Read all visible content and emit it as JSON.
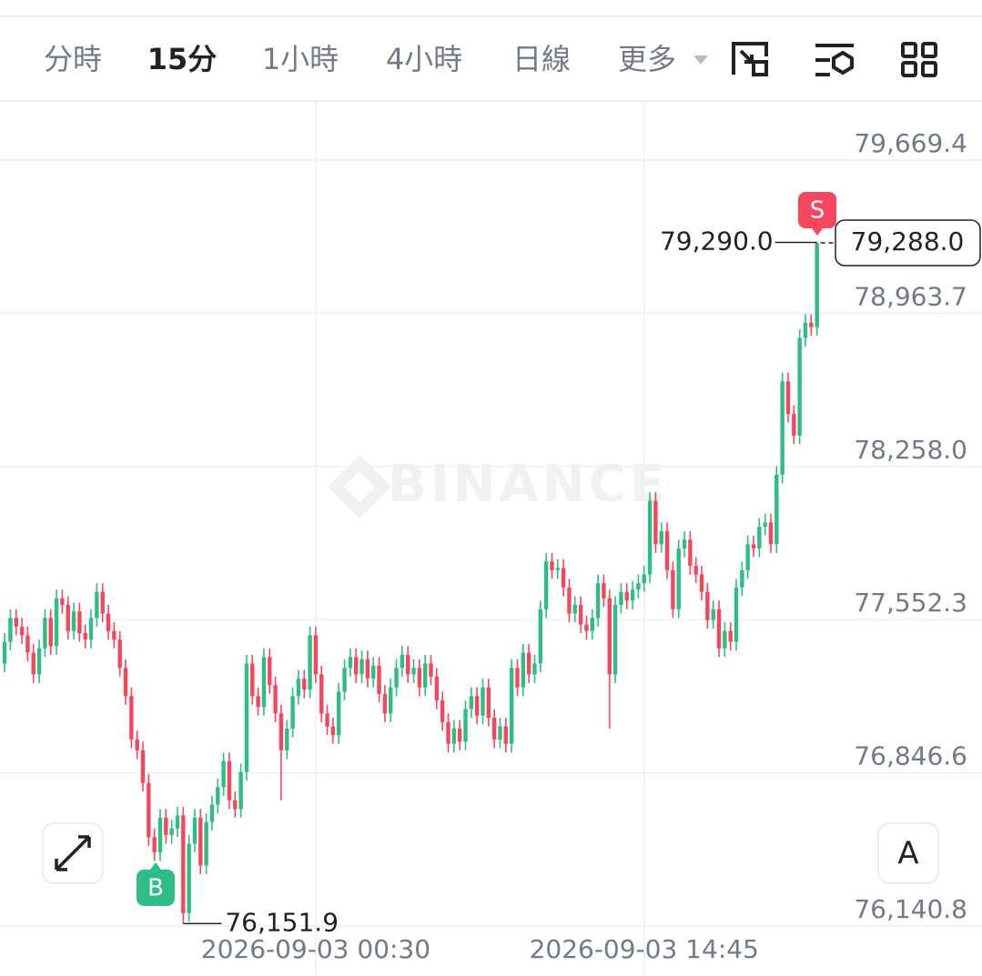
{
  "toolbar": {
    "tabs": [
      "分時",
      "15分",
      "1小時",
      "4小時",
      "日線",
      "更多"
    ]
  },
  "chart_data": {
    "type": "candlestick",
    "watermark": "BINANCE",
    "categories": [
      null,
      null,
      null,
      null,
      null,
      null,
      null,
      null,
      null,
      null,
      null,
      null,
      null,
      null,
      null,
      null,
      null,
      null,
      null,
      null,
      null,
      null,
      null,
      null,
      null,
      null,
      null,
      null,
      null,
      null,
      null,
      null,
      null,
      null,
      null,
      null,
      null,
      null,
      null,
      null,
      null,
      null,
      null,
      null,
      null,
      null,
      null,
      null,
      null,
      null,
      null,
      null,
      null,
      null,
      "2026-09-03 00:30",
      null,
      null,
      null,
      null,
      null,
      null,
      null,
      null,
      null,
      null,
      null,
      null,
      null,
      null,
      null,
      null,
      null,
      null,
      null,
      null,
      null,
      null,
      null,
      null,
      null,
      null,
      null,
      null,
      null,
      null,
      null,
      null,
      null,
      null,
      null,
      null,
      null,
      null,
      null,
      null,
      null,
      null,
      null,
      null,
      null,
      null,
      null,
      null,
      null,
      null,
      null,
      null,
      null,
      null,
      null,
      null,
      "2026-09-03 14:45",
      null,
      null,
      null,
      null,
      null,
      null,
      null,
      null,
      null,
      null,
      null,
      null,
      null,
      null,
      null,
      null,
      null,
      null,
      null,
      null,
      null,
      null,
      null,
      null,
      null,
      null,
      null,
      null,
      null,
      null
    ],
    "open": [
      77350,
      77450,
      77560,
      77520,
      77480,
      77400,
      77300,
      77420,
      77560,
      77430,
      77650,
      77620,
      77500,
      77590,
      77490,
      77460,
      77560,
      77680,
      77580,
      77500,
      77460,
      77330,
      77200,
      77000,
      76950,
      76800,
      76550,
      76480,
      76640,
      76560,
      76590,
      76650,
      76200,
      76520,
      76640,
      76420,
      76620,
      76700,
      76780,
      76900,
      76720,
      76680,
      76850,
      77350,
      77200,
      77150,
      77380,
      77250,
      77120,
      76950,
      77050,
      77200,
      77280,
      77230,
      77480,
      77300,
      77120,
      77060,
      77020,
      77220,
      77330,
      77380,
      77300,
      77370,
      77280,
      77340,
      77210,
      77120,
      77240,
      77330,
      77390,
      77300,
      77330,
      77240,
      77350,
      77290,
      77180,
      77080,
      76980,
      77050,
      76990,
      77140,
      77200,
      77110,
      77240,
      77100,
      77000,
      77060,
      76980,
      77330,
      77240,
      77400,
      77300,
      77350,
      77600,
      77820,
      77780,
      77790,
      77700,
      77580,
      77620,
      77530,
      77500,
      77560,
      77720,
      77650,
      77300,
      77620,
      77680,
      77640,
      77690,
      77720,
      77760,
      78100,
      77900,
      77960,
      77780,
      77600,
      77880,
      77920,
      77800,
      77760,
      77680,
      77550,
      77600,
      77420,
      77500,
      77450,
      77700,
      77780,
      77900,
      77880,
      77980,
      78000,
      77900,
      78220,
      78650,
      78500,
      78400,
      78850,
      78920,
      78900
    ],
    "high": [
      77490,
      77600,
      77600,
      77560,
      77520,
      77440,
      77460,
      77600,
      77600,
      77690,
      77690,
      77660,
      77630,
      77630,
      77530,
      77600,
      77720,
      77720,
      77620,
      77540,
      77500,
      77370,
      77240,
      77040,
      76990,
      76840,
      76590,
      76680,
      76680,
      76630,
      76690,
      76690,
      76560,
      76680,
      76680,
      76660,
      76740,
      76820,
      76940,
      76940,
      76760,
      76890,
      77390,
      77390,
      77240,
      77420,
      77420,
      77290,
      77160,
      77090,
      77240,
      77320,
      77320,
      77520,
      77520,
      77340,
      77160,
      77100,
      77260,
      77370,
      77420,
      77420,
      77410,
      77410,
      77380,
      77380,
      77250,
      77280,
      77370,
      77430,
      77430,
      77370,
      77370,
      77390,
      77390,
      77330,
      77220,
      77120,
      77090,
      77090,
      77180,
      77240,
      77240,
      77280,
      77280,
      77140,
      77100,
      77100,
      77370,
      77370,
      77440,
      77440,
      77390,
      77640,
      77860,
      77860,
      77830,
      77830,
      77740,
      77660,
      77660,
      77570,
      77600,
      77760,
      77760,
      77690,
      77660,
      77720,
      77720,
      77730,
      77760,
      77800,
      78140,
      78140,
      78000,
      78000,
      77820,
      77920,
      77960,
      77960,
      77840,
      77800,
      77720,
      77640,
      77640,
      77540,
      77540,
      77740,
      77820,
      77940,
      77940,
      78020,
      78040,
      78040,
      78260,
      78690,
      78690,
      78540,
      78890,
      78960,
      78960,
      79290.0
    ],
    "low": [
      77310,
      77410,
      77480,
      77440,
      77360,
      77260,
      77260,
      77380,
      77390,
      77390,
      77580,
      77460,
      77460,
      77450,
      77420,
      77420,
      77520,
      77540,
      77460,
      77420,
      77290,
      77160,
      76960,
      76910,
      76760,
      76510,
      76440,
      76440,
      76520,
      76520,
      76550,
      76151.9,
      76160,
      76480,
      76380,
      76380,
      76580,
      76660,
      76740,
      76680,
      76640,
      76640,
      76810,
      77160,
      77110,
      77110,
      77210,
      77080,
      76720,
      76910,
      77010,
      77160,
      77190,
      77190,
      77260,
      77080,
      77020,
      76980,
      76980,
      77180,
      77290,
      77260,
      77260,
      77240,
      77240,
      77170,
      77080,
      77080,
      77200,
      77290,
      77260,
      77260,
      77200,
      77200,
      77250,
      77140,
      77040,
      76940,
      76940,
      76950,
      76950,
      77100,
      77070,
      77070,
      77060,
      76960,
      76960,
      76940,
      76940,
      77200,
      77200,
      77260,
      77260,
      77310,
      77560,
      77740,
      77740,
      77660,
      77540,
      77540,
      77490,
      77460,
      77460,
      77520,
      77610,
      77050,
      77260,
      77580,
      77600,
      77600,
      77650,
      77680,
      77720,
      77860,
      77860,
      77740,
      77560,
      77560,
      77840,
      77760,
      77720,
      77640,
      77510,
      77510,
      77380,
      77380,
      77410,
      77410,
      77660,
      77740,
      77840,
      77840,
      77940,
      77860,
      77860,
      78180,
      78460,
      78360,
      78360,
      78810,
      78860,
      78860
    ],
    "close": [
      77450,
      77560,
      77520,
      77480,
      77400,
      77300,
      77420,
      77560,
      77430,
      77650,
      77620,
      77500,
      77590,
      77490,
      77460,
      77560,
      77680,
      77580,
      77500,
      77460,
      77330,
      77200,
      77000,
      76950,
      76800,
      76550,
      76480,
      76640,
      76560,
      76590,
      76650,
      76200,
      76520,
      76640,
      76420,
      76620,
      76700,
      76780,
      76900,
      76720,
      76680,
      76850,
      77350,
      77200,
      77150,
      77380,
      77250,
      77120,
      76950,
      77050,
      77200,
      77280,
      77230,
      77480,
      77300,
      77120,
      77060,
      77020,
      77220,
      77330,
      77380,
      77300,
      77370,
      77280,
      77340,
      77210,
      77120,
      77240,
      77330,
      77390,
      77300,
      77330,
      77240,
      77350,
      77290,
      77180,
      77080,
      76980,
      77050,
      76990,
      77140,
      77200,
      77110,
      77240,
      77100,
      77000,
      77060,
      76980,
      77330,
      77240,
      77400,
      77300,
      77350,
      77600,
      77820,
      77780,
      77790,
      77700,
      77580,
      77620,
      77530,
      77500,
      77560,
      77720,
      77650,
      77300,
      77620,
      77680,
      77640,
      77690,
      77720,
      77760,
      78100,
      77900,
      77960,
      77780,
      77600,
      77880,
      77920,
      77800,
      77760,
      77680,
      77550,
      77600,
      77420,
      77500,
      77450,
      77700,
      77780,
      77900,
      77880,
      77980,
      78000,
      77900,
      78220,
      78650,
      78500,
      78400,
      78850,
      78920,
      78900,
      79288
    ],
    "up_color": "#2ebd85",
    "down_color": "#f6465d",
    "ylim": [
      76140.8,
      79669.4
    ],
    "yticks": [
      {
        "value": 76140.8,
        "label": "76,140.8"
      },
      {
        "value": 76846.6,
        "label": "76,846.6"
      },
      {
        "value": 77552.3,
        "label": "77,552.3"
      },
      {
        "value": 78258.0,
        "label": "78,258.0"
      },
      {
        "value": 78963.7,
        "label": "78,963.7"
      },
      {
        "value": 79669.4,
        "label": "79,669.4"
      }
    ],
    "grid": true,
    "high_label": "79,290.0",
    "low_label": "76,151.9",
    "last_price_label": "79,288.0",
    "sell_marker": "S",
    "buy_marker": "B",
    "font_button": "A"
  }
}
